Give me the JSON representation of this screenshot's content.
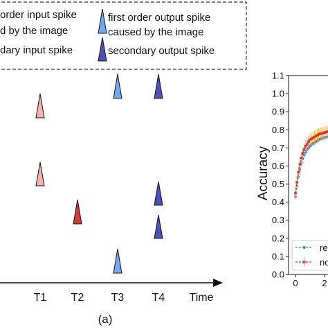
{
  "legend": {
    "first_input_line1": "order input spike",
    "first_input_line2": "d by the image",
    "secondary_input": "dary input spike",
    "first_output_line1": "first order output spike",
    "first_output_line2": "caused by the image",
    "secondary_output": "secondary output spike"
  },
  "panel_a": {
    "x_ticks": [
      "T1",
      "T2",
      "T3",
      "T4"
    ],
    "x_label": "Time",
    "caption": "(a)"
  },
  "colors": {
    "first_input": "#f6b3b3",
    "secondary_input": "#d03a33",
    "first_output": "#74aaf0",
    "secondary_output": "#5050b8"
  },
  "chart_data": {
    "type": "line",
    "ylabel": "Accuracy",
    "ylim": [
      0.0,
      1.1
    ],
    "y_ticks": [
      "0.0",
      "0.1",
      "0.2",
      "0.3",
      "0.4",
      "0.5",
      "0.6",
      "0.7",
      "0.8",
      "0.9",
      "1.0",
      "1.1"
    ],
    "x_ticks": [
      "0",
      "2"
    ],
    "legend_labels": [
      "re",
      "no"
    ],
    "series": [
      {
        "color": "#3b7fc4",
        "x": [
          0.0,
          0.1,
          0.2,
          0.3,
          0.4,
          0.5,
          0.6,
          0.7,
          0.8,
          0.9,
          1.0,
          1.1,
          1.2,
          1.3,
          1.4,
          1.5,
          1.6,
          1.7,
          1.8,
          1.9,
          2.0,
          2.1,
          2.2
        ],
        "values": [
          0.43,
          0.49,
          0.54,
          0.58,
          0.615,
          0.64,
          0.66,
          0.675,
          0.69,
          0.7,
          0.71,
          0.72,
          0.725,
          0.73,
          0.735,
          0.74,
          0.745,
          0.75,
          0.752,
          0.755,
          0.758,
          0.76,
          0.762
        ]
      },
      {
        "color": "#d03a33",
        "x": [
          0.0,
          0.1,
          0.2,
          0.3,
          0.4,
          0.5,
          0.6,
          0.7,
          0.8,
          0.9,
          1.0,
          1.1,
          1.2,
          1.3,
          1.4,
          1.5,
          1.6,
          1.7,
          1.8,
          1.9,
          2.0,
          2.1,
          2.2
        ],
        "values": [
          0.45,
          0.51,
          0.565,
          0.61,
          0.645,
          0.67,
          0.69,
          0.71,
          0.72,
          0.735,
          0.745,
          0.75,
          0.755,
          0.76,
          0.765,
          0.77,
          0.775,
          0.778,
          0.78,
          0.782,
          0.785,
          0.787,
          0.79
        ]
      }
    ]
  }
}
